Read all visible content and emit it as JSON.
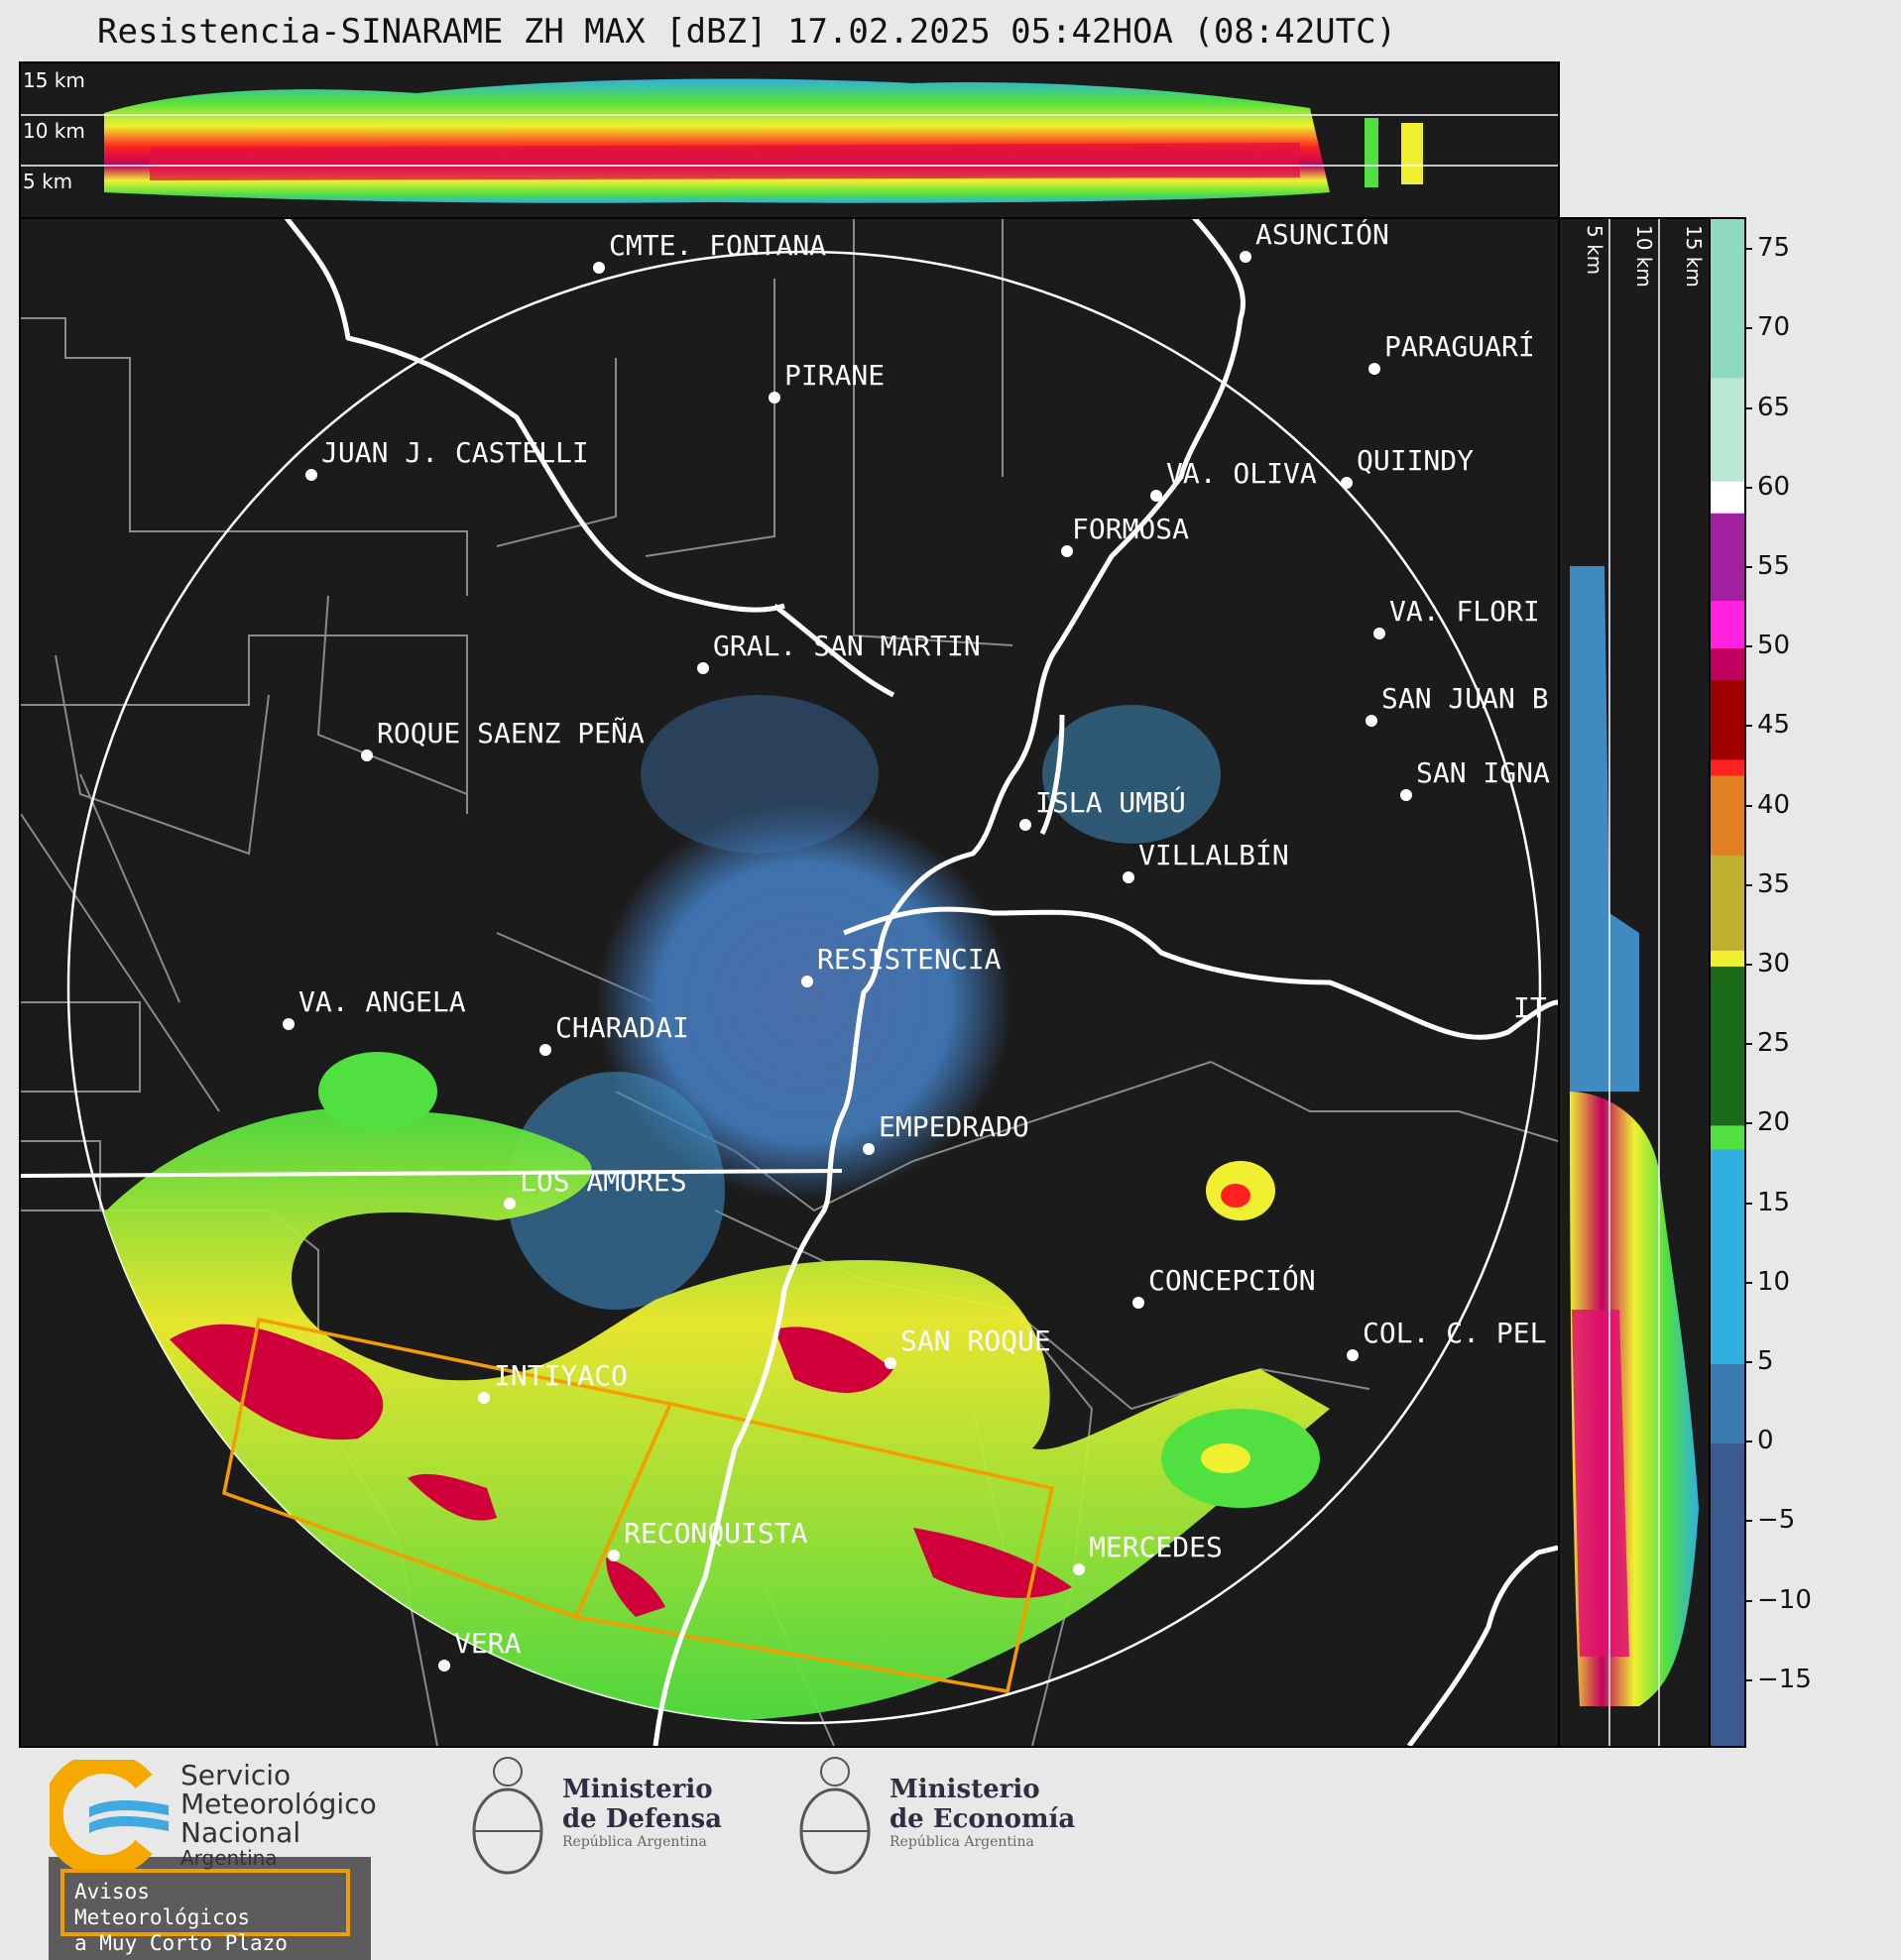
{
  "header": {
    "title": "Resistencia-SINARAME ZH MAX [dBZ] 17.02.2025 05:42HOA (08:42UTC)"
  },
  "height_labels": {
    "top": [
      "15 km",
      "10 km",
      "5 km"
    ],
    "side": [
      "5 km",
      "10 km",
      "15 km"
    ]
  },
  "cities": [
    {
      "name": "CMTE. FONTANA",
      "label": "CMTE. FONTANA"
    },
    {
      "name": "ASUNCION",
      "label": "ASUNCIÓN"
    },
    {
      "name": "PIRANE",
      "label": "PIRANE"
    },
    {
      "name": "PARAGUARI",
      "label": "PARAGUARÍ"
    },
    {
      "name": "JUAN-J-CASTELLI",
      "label": "JUAN J. CASTELLI"
    },
    {
      "name": "VA-OLIVA",
      "label": "VA. OLIVA"
    },
    {
      "name": "QUIINDY",
      "label": "QUIINDY"
    },
    {
      "name": "FORMOSA",
      "label": "FORMOSA"
    },
    {
      "name": "VA-FLORIDA",
      "label": "VA. FLORI"
    },
    {
      "name": "GRAL-SAN-MARTIN",
      "label": "GRAL. SAN MARTIN"
    },
    {
      "name": "SAN-JUAN-B",
      "label": "SAN JUAN B"
    },
    {
      "name": "ROQUE-SAENZ-PENA",
      "label": "ROQUE SAENZ PEÑA"
    },
    {
      "name": "SAN-IGNACIO",
      "label": "SAN IGNA"
    },
    {
      "name": "ISLA-UMBU",
      "label": "ISLA UMBÚ"
    },
    {
      "name": "VILLALBIN",
      "label": "VILLALBÍN"
    },
    {
      "name": "RESISTENCIA",
      "label": "RESISTENCIA"
    },
    {
      "name": "VA-ANGELA",
      "label": "VA. ANGELA"
    },
    {
      "name": "CHARADAI",
      "label": "CHARADAI"
    },
    {
      "name": "ITATI",
      "label": "IT"
    },
    {
      "name": "EMPEDRADO",
      "label": "EMPEDRADO"
    },
    {
      "name": "LOS-AMORES",
      "label": "LOS AMORES"
    },
    {
      "name": "CONCEPCION",
      "label": "CONCEPCIÓN"
    },
    {
      "name": "SAN-ROQUE",
      "label": "SAN ROQUE"
    },
    {
      "name": "COL-C-PEL",
      "label": "COL. C. PEL"
    },
    {
      "name": "INTIYACO",
      "label": "INTIYACO"
    },
    {
      "name": "RECONQUISTA",
      "label": "RECONQUISTA"
    },
    {
      "name": "MERCEDES",
      "label": "MERCEDES"
    },
    {
      "name": "VERA",
      "label": "VERA"
    }
  ],
  "colorbar": {
    "ticks": [
      "75",
      "70",
      "65",
      "60",
      "55",
      "50",
      "45",
      "40",
      "35",
      "30",
      "25",
      "20",
      "15",
      "10",
      "5",
      "0",
      "−5",
      "−10",
      "−15"
    ],
    "stops": [
      {
        "dbz": 77,
        "color": "#8fd9bf"
      },
      {
        "dbz": 67,
        "color": "#b8e8d4"
      },
      {
        "dbz": 60.5,
        "color": "#ffffff"
      },
      {
        "dbz": 58.5,
        "color": "#a020a0"
      },
      {
        "dbz": 53,
        "color": "#ff20e0"
      },
      {
        "dbz": 50,
        "color": "#c00060"
      },
      {
        "dbz": 48,
        "color": "#a00000"
      },
      {
        "dbz": 43,
        "color": "#ff2020"
      },
      {
        "dbz": 42,
        "color": "#e08020"
      },
      {
        "dbz": 37,
        "color": "#c0b030"
      },
      {
        "dbz": 31,
        "color": "#f0f030"
      },
      {
        "dbz": 30,
        "color": "#1a6a1a"
      },
      {
        "dbz": 20,
        "color": "#50e040"
      },
      {
        "dbz": 18.5,
        "color": "#30b0e0"
      },
      {
        "dbz": 5,
        "color": "#3a7ab0"
      },
      {
        "dbz": 0,
        "color": "#3a5a90"
      },
      {
        "dbz": -19,
        "color": "#3a3a70"
      }
    ]
  },
  "warning_box": {
    "line1": "Avisos Meteorológicos",
    "line2": "a Muy Corto Plazo",
    "color": "#f59d00"
  },
  "logos": {
    "smn": {
      "line1": "Servicio",
      "line2": "Meteorológico",
      "line3": "Nacional",
      "line4": "Argentina"
    },
    "defensa": {
      "line1": "Ministerio",
      "line2": "de Defensa",
      "line3": "República Argentina"
    },
    "economia": {
      "line1": "Ministerio",
      "line2": "de Economía",
      "line3": "República Argentina"
    }
  }
}
